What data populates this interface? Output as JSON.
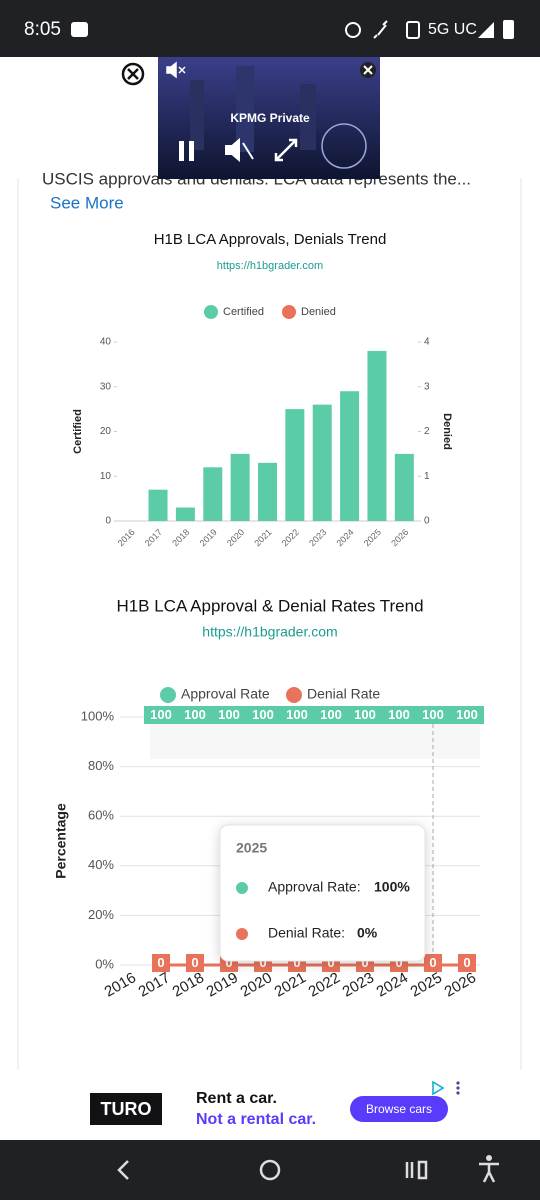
{
  "status_bar": {
    "time": "8:05",
    "network": "5G UC"
  },
  "ad_top": {
    "text": "KPMG Private"
  },
  "intro": {
    "text": "USCIS approvals and denials. LCA data represents the...",
    "link": "See More"
  },
  "chart_data": [
    {
      "type": "bar",
      "title": "H1B LCA Approvals, Denials Trend",
      "subtitle": "https://h1bgrader.com",
      "y_label": "Certified",
      "y2_label": "Denied",
      "categories": [
        "2016",
        "2017",
        "2018",
        "2019",
        "2020",
        "2021",
        "2022",
        "2023",
        "2024",
        "2025",
        "2026"
      ],
      "series": [
        {
          "name": "Certified",
          "color": "#5ccba8",
          "values": [
            0,
            7,
            3,
            12,
            15,
            13,
            25,
            26,
            29,
            38,
            15
          ]
        },
        {
          "name": "Denied",
          "color": "#e8735a",
          "axis": "y2",
          "values": [
            0,
            0,
            0,
            0,
            0,
            0,
            0,
            0,
            0,
            0,
            0
          ]
        }
      ],
      "ylim": [
        0,
        40
      ],
      "yticks": [
        0,
        10,
        20,
        30,
        40
      ],
      "y2lim": [
        0,
        4
      ],
      "y2ticks": [
        0,
        1,
        2,
        3,
        4
      ],
      "grid": false
    },
    {
      "type": "line",
      "title": "H1B LCA Approval & Denial Rates Trend",
      "subtitle": "https://h1bgrader.com",
      "y_label": "Percentage",
      "categories": [
        "2016",
        "2017",
        "2018",
        "2019",
        "2020",
        "2021",
        "2022",
        "2023",
        "2024",
        "2025",
        "2026"
      ],
      "series": [
        {
          "name": "Approval Rate",
          "color": "#5ccba8",
          "values": [
            null,
            100,
            100,
            100,
            100,
            100,
            100,
            100,
            100,
            100,
            100
          ]
        },
        {
          "name": "Denial Rate",
          "color": "#e8735a",
          "values": [
            null,
            0,
            0,
            0,
            0,
            0,
            0,
            0,
            0,
            0,
            0
          ]
        }
      ],
      "ylim": [
        0,
        100
      ],
      "yticks": [
        {
          "value": 0,
          "label": "0%"
        },
        {
          "value": 20,
          "label": "20%"
        },
        {
          "value": 40,
          "label": "40%"
        },
        {
          "value": 60,
          "label": "60%"
        },
        {
          "value": 80,
          "label": "80%"
        },
        {
          "value": 100,
          "label": "100%"
        }
      ],
      "grid": true
    }
  ],
  "tooltip": {
    "title": "2025",
    "items": [
      {
        "label": "Approval Rate:",
        "value": "100%"
      },
      {
        "label": "Denial Rate:",
        "value": "0%"
      }
    ]
  },
  "ad_bottom": {
    "brand": "TURO",
    "headline": "Rent a car.",
    "tagline": "Not a rental car.",
    "button": "Browse cars"
  }
}
